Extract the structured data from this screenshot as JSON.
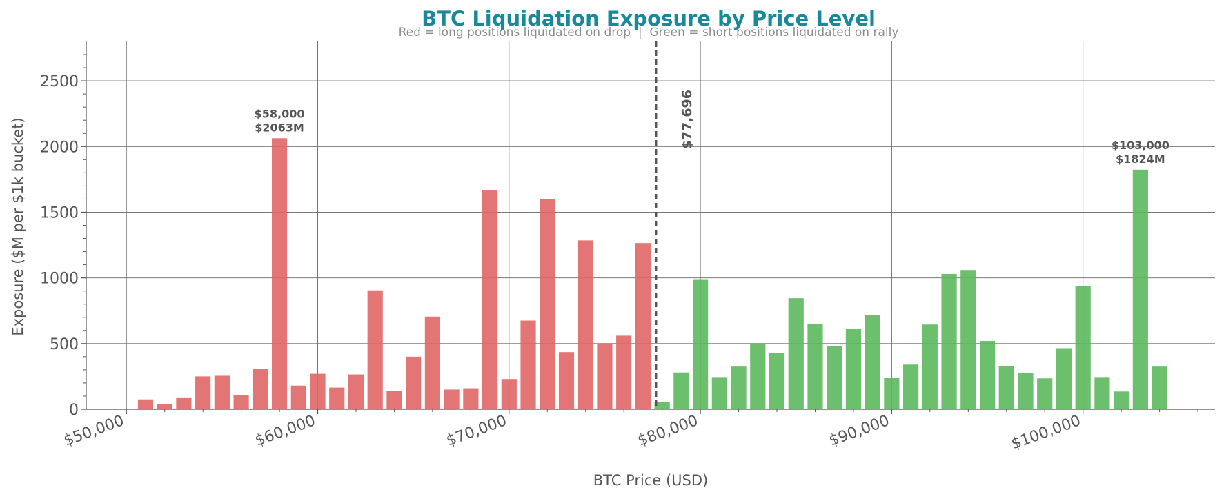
{
  "colors": {
    "title": "#17899a",
    "subtitle": "#8c8c8c",
    "text": "#555555",
    "grid": "#666666",
    "long": "#e06666",
    "short": "#5cb85c",
    "current_line": "#555555"
  },
  "chart_data": {
    "type": "bar",
    "title": "BTC Liquidation Exposure by Price Level",
    "subtitle": "Red = long positions liquidated on drop  |  Green = short positions liquidated on rally",
    "xlabel": "BTC Price (USD)",
    "ylabel": "Exposure ($M per $1k bucket)",
    "xlim": [
      47900,
      106900
    ],
    "ylim": [
      0,
      2800
    ],
    "x_ticks": [
      50000,
      60000,
      70000,
      80000,
      90000,
      100000
    ],
    "x_tick_labels": [
      "$50,000",
      "$60,000",
      "$70,000",
      "$80,000",
      "$90,000",
      "$100,000"
    ],
    "y_ticks": [
      0,
      500,
      1000,
      1500,
      2000,
      2500
    ],
    "y_tick_labels": [
      "0",
      "500",
      "1000",
      "1500",
      "2000",
      "2500"
    ],
    "grid": true,
    "bar_width": 800,
    "current_price": 77696,
    "current_price_label": "$77,696",
    "series": [
      {
        "role": "long",
        "x": [
          51000,
          52000,
          53000,
          54000,
          55000,
          56000,
          57000,
          58000,
          59000,
          60000,
          61000,
          62000,
          63000,
          64000,
          65000,
          66000,
          67000,
          68000,
          69000,
          70000,
          71000,
          72000,
          73000,
          74000,
          75000,
          76000,
          77000
        ],
        "values": [
          75,
          40,
          90,
          250,
          255,
          110,
          305,
          2063,
          180,
          270,
          165,
          265,
          905,
          140,
          400,
          705,
          150,
          160,
          1665,
          230,
          675,
          1600,
          435,
          1285,
          495,
          560,
          1265
        ]
      },
      {
        "role": "short",
        "x": [
          78000,
          79000,
          80000,
          81000,
          82000,
          83000,
          84000,
          85000,
          86000,
          87000,
          88000,
          89000,
          90000,
          91000,
          92000,
          93000,
          94000,
          95000,
          96000,
          97000,
          98000,
          99000,
          100000,
          101000,
          102000,
          103000,
          104000
        ],
        "values": [
          55,
          280,
          990,
          245,
          325,
          495,
          430,
          845,
          650,
          480,
          615,
          715,
          240,
          340,
          645,
          1030,
          1060,
          520,
          330,
          275,
          235,
          465,
          940,
          245,
          135,
          1824,
          325
        ]
      }
    ],
    "annotations": [
      {
        "x": 58000,
        "y": 2063,
        "line1": "$58,000",
        "line2": "$2063M"
      },
      {
        "x": 103000,
        "y": 1824,
        "line1": "$103,000",
        "line2": "$1824M"
      }
    ]
  }
}
